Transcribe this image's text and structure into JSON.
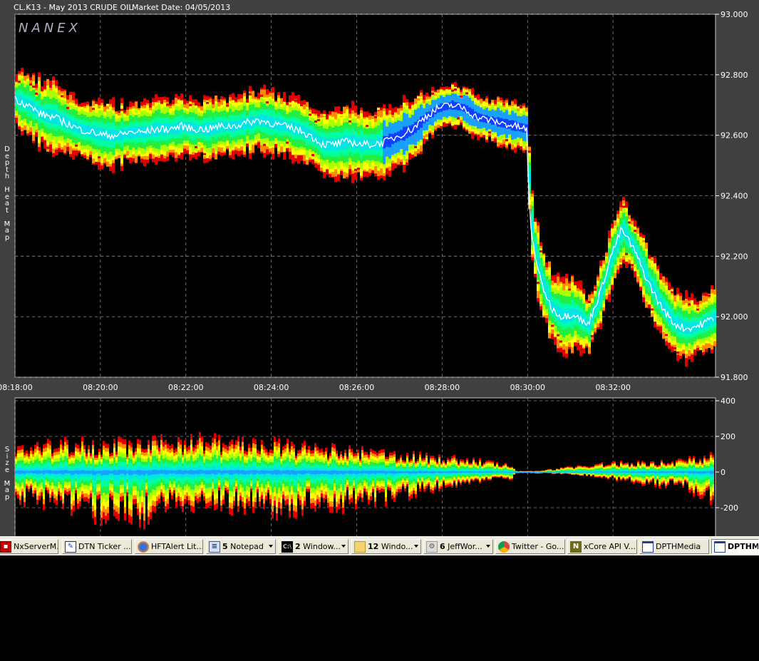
{
  "header": {
    "symbol": "CL.K13 - May 2013 CRUDE OIL",
    "market_date": "Market Date: 04/05/2013"
  },
  "logo": "NANEX",
  "chart_data": [
    {
      "type": "heatmap",
      "title": "Depth Heat Map",
      "ylabel": "Depth Heat Map",
      "ylim": [
        91.8,
        93.0
      ],
      "y_ticks": [
        "93.000",
        "92.800",
        "92.600",
        "92.400",
        "92.200",
        "92.000",
        "91.800"
      ],
      "x_ticks": [
        "08:18:00",
        "08:20:00",
        "08:22:00",
        "08:24:00",
        "08:26:00",
        "08:28:00",
        "08:30:00",
        "08:32:00"
      ],
      "xlim_minutes": [
        0,
        16.4
      ],
      "last_trade_path": {
        "minute": [
          0,
          0.3,
          0.6,
          0.9,
          1.2,
          1.5,
          1.8,
          2.1,
          2.4,
          2.7,
          3.0,
          3.3,
          3.6,
          3.9,
          4.2,
          4.5,
          4.8,
          5.1,
          5.4,
          5.7,
          6.0,
          6.3,
          6.6,
          6.9,
          7.2,
          7.5,
          7.8,
          8.1,
          8.4,
          8.7,
          9.0,
          9.3,
          9.6,
          9.9,
          10.2,
          10.5,
          10.8,
          11.1,
          11.4,
          11.7,
          11.98,
          12.02,
          12.1,
          12.3,
          12.55,
          12.8,
          13.1,
          13.4,
          13.7,
          13.95,
          14.2,
          14.5,
          14.8,
          15.1,
          15.4,
          15.7,
          16.0,
          16.4
        ],
        "price": [
          92.72,
          92.7,
          92.67,
          92.66,
          92.64,
          92.62,
          92.61,
          92.6,
          92.6,
          92.61,
          92.61,
          92.62,
          92.62,
          92.63,
          92.62,
          92.62,
          92.63,
          92.63,
          92.64,
          92.65,
          92.64,
          92.63,
          92.62,
          92.6,
          92.57,
          92.57,
          92.58,
          92.57,
          92.57,
          92.58,
          92.6,
          92.62,
          92.66,
          92.69,
          92.7,
          92.69,
          92.66,
          92.65,
          92.64,
          92.63,
          92.62,
          92.42,
          92.26,
          92.12,
          92.03,
          92.0,
          92.01,
          91.97,
          92.08,
          92.2,
          92.29,
          92.22,
          92.12,
          92.04,
          91.98,
          91.96,
          91.97,
          92.0
        ]
      },
      "book_spread_halfwidth": [
        0.09,
        0.1,
        0.11,
        0.11,
        0.1,
        0.1,
        0.1,
        0.1,
        0.1,
        0.1,
        0.1,
        0.1,
        0.1,
        0.1,
        0.1,
        0.1,
        0.1,
        0.1,
        0.1,
        0.1,
        0.1,
        0.1,
        0.1,
        0.1,
        0.11,
        0.11,
        0.11,
        0.11,
        0.11,
        0.11,
        0.11,
        0.1,
        0.08,
        0.07,
        0.07,
        0.07,
        0.07,
        0.07,
        0.08,
        0.08,
        0.08,
        0.1,
        0.12,
        0.12,
        0.12,
        0.12,
        0.11,
        0.1,
        0.1,
        0.1,
        0.1,
        0.1,
        0.1,
        0.11,
        0.11,
        0.1,
        0.09,
        0.09
      ],
      "color_scale": [
        "#e00000",
        "#ff8c00",
        "#ffff00",
        "#aaff00",
        "#22ee44",
        "#00ffa0",
        "#00e5e5",
        "#1aa0ff",
        "#1040ff",
        "#ffffff"
      ]
    },
    {
      "type": "heatmap",
      "title": "Size Map",
      "ylabel": "Size Map",
      "ylim": [
        -400,
        400
      ],
      "y_ticks": [
        "400",
        "200",
        "0",
        "-200"
      ],
      "amplitude_profile": {
        "minute": [
          0,
          1,
          1.5,
          2,
          2.5,
          3,
          3.5,
          4,
          4.5,
          5,
          5.5,
          6,
          6.5,
          7,
          7.5,
          8,
          8.5,
          9,
          9.5,
          10,
          10.5,
          11,
          11.6,
          11.7,
          12,
          12.5,
          13,
          13.5,
          14,
          14.5,
          15,
          15.5,
          16,
          16.4
        ],
        "up": [
          150,
          170,
          200,
          160,
          180,
          170,
          190,
          210,
          200,
          190,
          180,
          175,
          160,
          150,
          140,
          130,
          120,
          110,
          100,
          90,
          80,
          65,
          40,
          6,
          5,
          15,
          35,
          45,
          55,
          60,
          60,
          70,
          90,
          130
        ],
        "down": [
          170,
          190,
          230,
          260,
          240,
          270,
          230,
          200,
          190,
          210,
          200,
          230,
          230,
          210,
          200,
          190,
          170,
          150,
          120,
          90,
          70,
          55,
          45,
          6,
          5,
          10,
          15,
          30,
          45,
          60,
          75,
          90,
          130,
          170
        ]
      }
    }
  ],
  "taskbar": {
    "items": [
      {
        "label": "NxServerM...",
        "icon": "server-icon"
      },
      {
        "label": "DTN Ticker ...",
        "icon": "notepad-icon"
      },
      {
        "label": "HFTAlert Lit...",
        "icon": "firefox-icon"
      },
      {
        "count": "5",
        "label": "Notepad",
        "icon": "notepad-icon"
      },
      {
        "count": "2",
        "label": "Window...",
        "icon": "cmd-icon"
      },
      {
        "count": "12",
        "label": "Windo...",
        "icon": "folder-icon"
      },
      {
        "count": "6",
        "label": "JeffWor...",
        "icon": "app-icon"
      },
      {
        "label": "Twitter - Go...",
        "icon": "chrome-icon"
      },
      {
        "label": "xCore API V...",
        "icon": "n-icon"
      },
      {
        "label": "DPTHMedia",
        "icon": "window-icon"
      },
      {
        "label": "DPTHMe",
        "icon": "window-icon"
      }
    ]
  }
}
